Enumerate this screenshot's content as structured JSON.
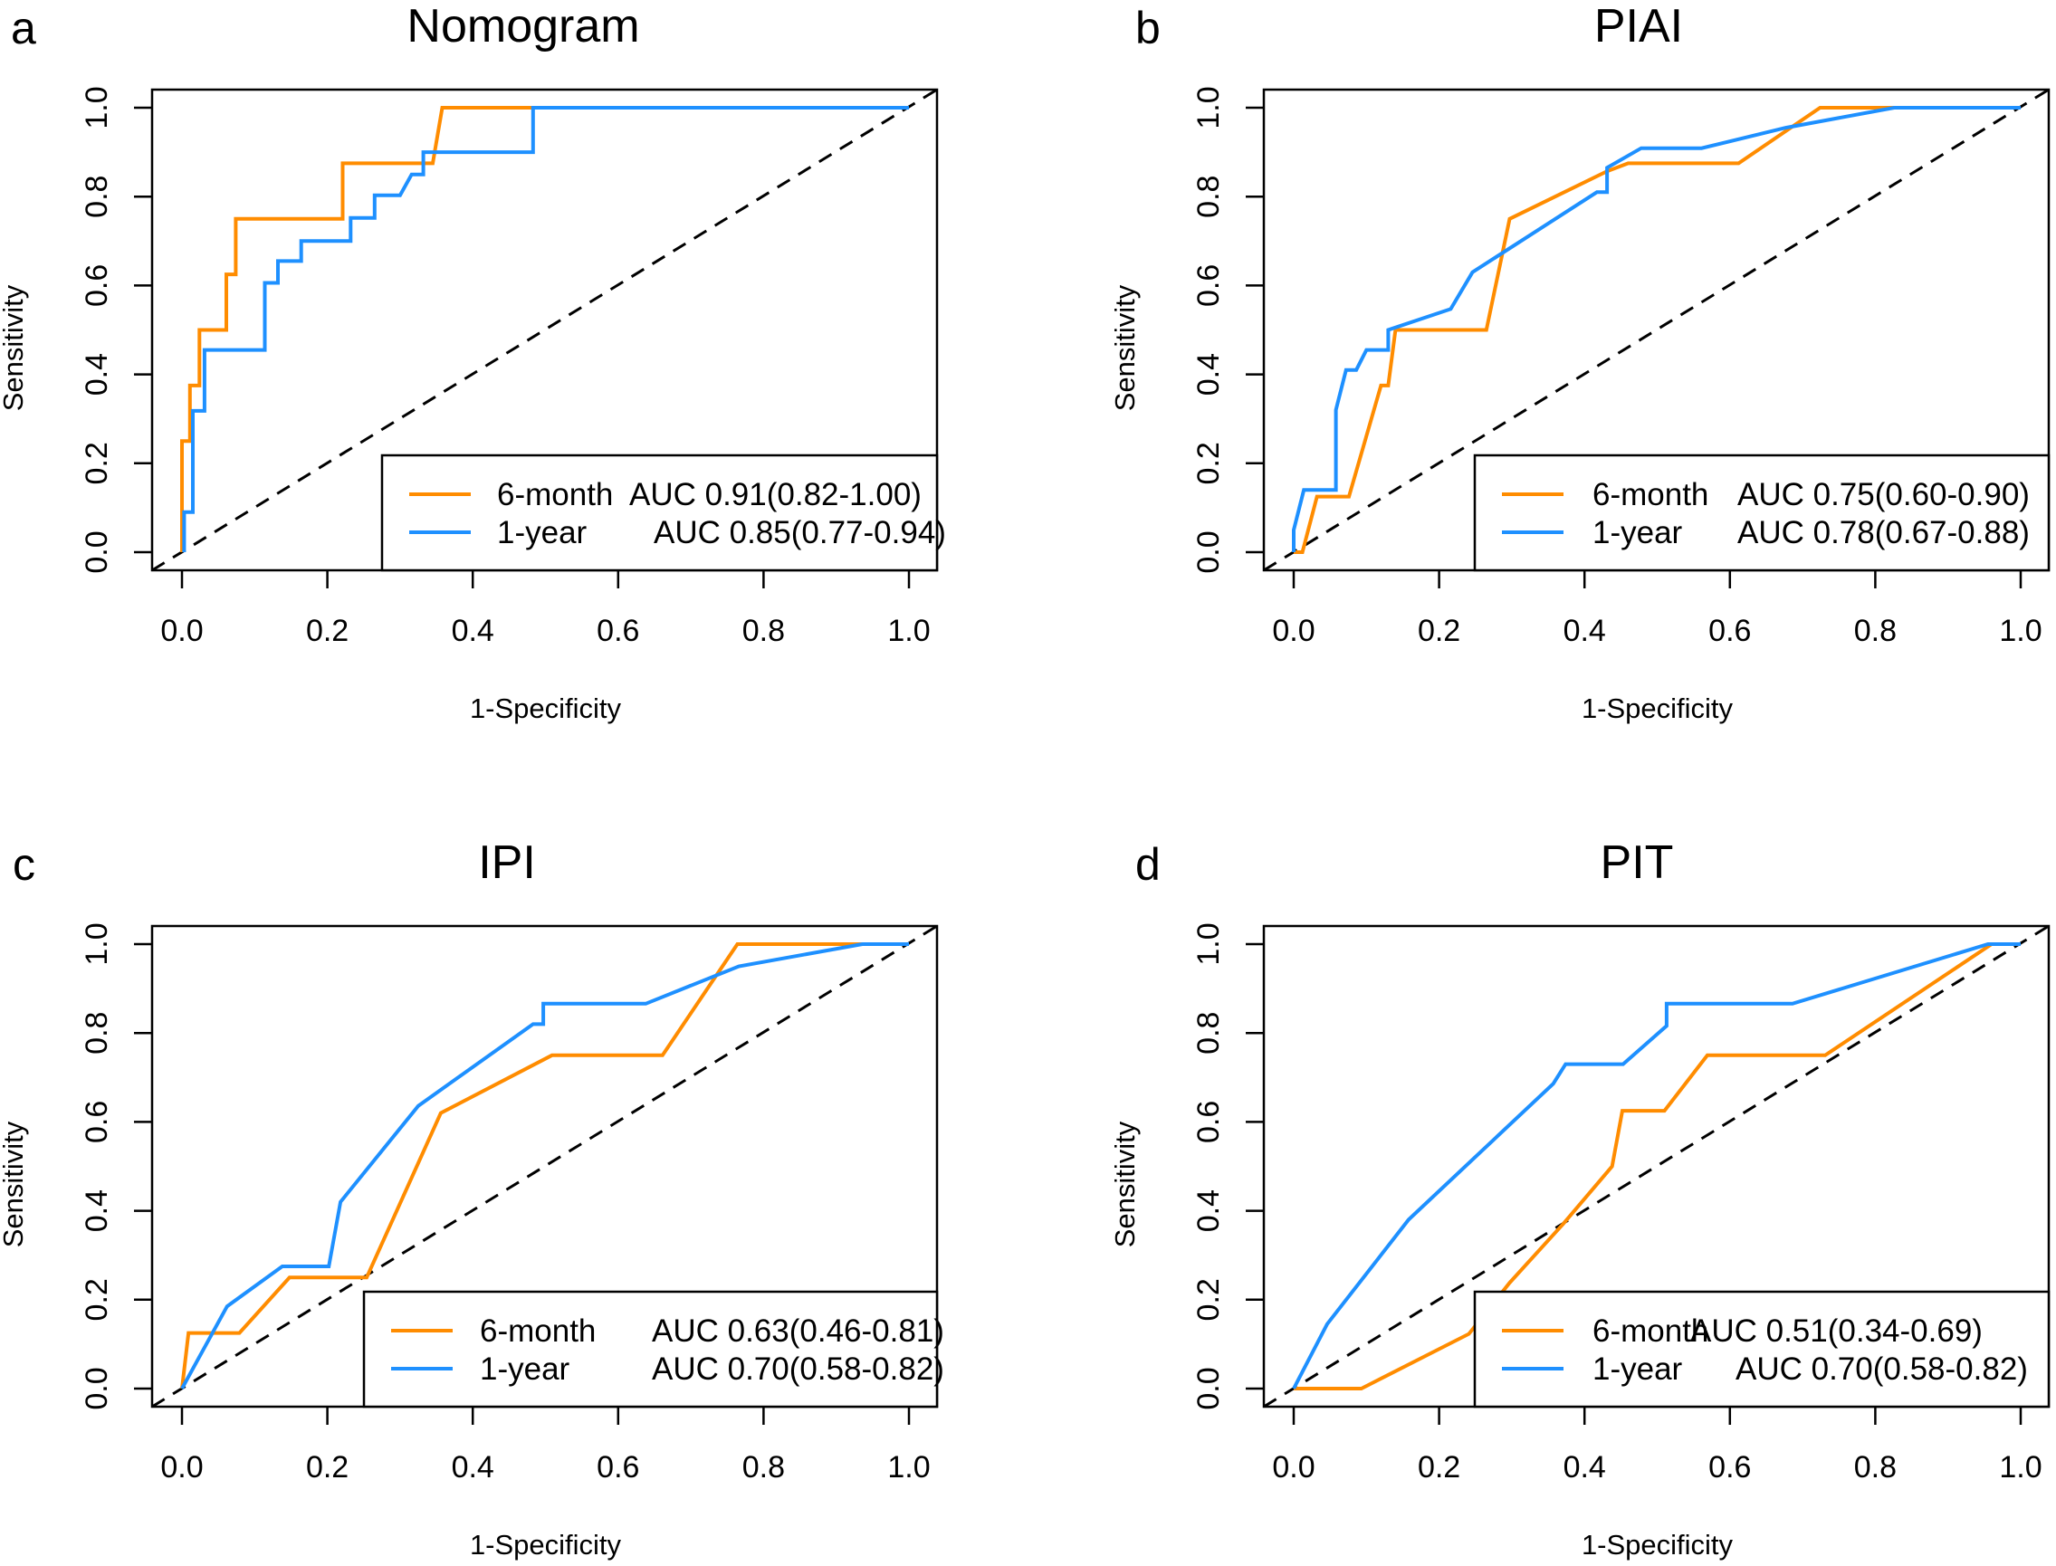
{
  "chart_data": [
    {
      "type": "line",
      "panel_label": "a",
      "title": "Nomogram",
      "xlabel": "1-Specificity",
      "ylabel": "Sensitivity",
      "xlim": [
        0,
        1
      ],
      "ylim": [
        0,
        1
      ],
      "xticks": [
        "0.0",
        "0.2",
        "0.4",
        "0.6",
        "0.8",
        "1.0"
      ],
      "yticks": [
        "0.0",
        "0.2",
        "0.4",
        "0.6",
        "0.8",
        "1.0"
      ],
      "reference_line": "diagonal dashed",
      "legend_position": "bottom-right",
      "series": [
        {
          "name": "6-month",
          "legend_label": "6-month",
          "legend_value": "AUC 0.91(0.82-1.00)",
          "color": "#FF8C00",
          "x": [
            0,
            0,
            0.011,
            0.011,
            0.024,
            0.024,
            0.061,
            0.061,
            0.074,
            0.074,
            0.221,
            0.221,
            0.345,
            0.358,
            1.0
          ],
          "y": [
            0,
            0.25,
            0.25,
            0.375,
            0.375,
            0.5,
            0.5,
            0.625,
            0.625,
            0.75,
            0.75,
            0.875,
            0.875,
            1.0,
            1.0
          ]
        },
        {
          "name": "1-year",
          "legend_label": "1-year",
          "legend_value": "AUC 0.85(0.77-0.94)",
          "color": "#1E90FF",
          "x": [
            0.003,
            0.003,
            0.015,
            0.015,
            0.031,
            0.031,
            0.114,
            0.114,
            0.132,
            0.132,
            0.164,
            0.164,
            0.232,
            0.232,
            0.265,
            0.265,
            0.3,
            0.316,
            0.332,
            0.332,
            0.483,
            0.483,
            1.0
          ],
          "y": [
            0,
            0.09,
            0.09,
            0.318,
            0.318,
            0.455,
            0.455,
            0.606,
            0.606,
            0.655,
            0.655,
            0.7,
            0.7,
            0.752,
            0.752,
            0.803,
            0.803,
            0.85,
            0.85,
            0.9,
            0.9,
            1.0,
            1.0
          ]
        }
      ]
    },
    {
      "type": "line",
      "panel_label": "b",
      "title": "PIAI",
      "xlabel": "1-Specificity",
      "ylabel": "Sensitivity",
      "xlim": [
        0,
        1
      ],
      "ylim": [
        0,
        1
      ],
      "xticks": [
        "0.0",
        "0.2",
        "0.4",
        "0.6",
        "0.8",
        "1.0"
      ],
      "yticks": [
        "0.0",
        "0.2",
        "0.4",
        "0.6",
        "0.8",
        "1.0"
      ],
      "reference_line": "diagonal dashed",
      "legend_position": "bottom-right",
      "series": [
        {
          "name": "6-month",
          "legend_label": "6-month",
          "legend_value": "AUC 0.75(0.60-0.90)",
          "color": "#FF8C00",
          "x": [
            0,
            0.012,
            0.032,
            0.076,
            0.12,
            0.13,
            0.14,
            0.265,
            0.297,
            0.431,
            0.46,
            0.612,
            0.724,
            1.0
          ],
          "y": [
            0,
            0,
            0.125,
            0.125,
            0.375,
            0.375,
            0.5,
            0.5,
            0.75,
            0.857,
            0.875,
            0.875,
            1.0,
            1.0
          ]
        },
        {
          "name": "1-year",
          "legend_label": "1-year",
          "legend_value": "AUC 0.78(0.67-0.88)",
          "color": "#1E90FF",
          "x": [
            0,
            0,
            0.014,
            0.058,
            0.058,
            0.072,
            0.086,
            0.1,
            0.13,
            0.13,
            0.216,
            0.246,
            0.417,
            0.431,
            0.431,
            0.478,
            0.561,
            0.677,
            0.826,
            1.0
          ],
          "y": [
            0,
            0.05,
            0.14,
            0.14,
            0.32,
            0.41,
            0.41,
            0.455,
            0.455,
            0.5,
            0.547,
            0.63,
            0.81,
            0.81,
            0.865,
            0.909,
            0.909,
            0.955,
            1.0,
            1.0
          ]
        }
      ]
    },
    {
      "type": "line",
      "panel_label": "c",
      "title": "IPI",
      "xlabel": "1-Specificity",
      "ylabel": "Sensitivity",
      "xlim": [
        0,
        1
      ],
      "ylim": [
        0,
        1
      ],
      "xticks": [
        "0.0",
        "0.2",
        "0.4",
        "0.6",
        "0.8",
        "1.0"
      ],
      "yticks": [
        "0.0",
        "0.2",
        "0.4",
        "0.6",
        "0.8",
        "1.0"
      ],
      "reference_line": "diagonal dashed",
      "legend_position": "bottom-right",
      "series": [
        {
          "name": "6-month",
          "legend_label": "6-month",
          "legend_value": "AUC 0.63(0.46-0.81)",
          "color": "#FF8C00",
          "x": [
            0,
            0.009,
            0.079,
            0.148,
            0.254,
            0.356,
            0.509,
            0.661,
            0.764,
            1.0
          ],
          "y": [
            0,
            0.125,
            0.125,
            0.25,
            0.25,
            0.62,
            0.75,
            0.75,
            1.0,
            1.0
          ]
        },
        {
          "name": "1-year",
          "legend_label": "1-year",
          "legend_value": "AUC 0.70(0.58-0.82)",
          "color": "#1E90FF",
          "x": [
            0,
            0.062,
            0.138,
            0.202,
            0.218,
            0.325,
            0.483,
            0.497,
            0.497,
            0.638,
            0.766,
            0.936,
            1.0
          ],
          "y": [
            0,
            0.185,
            0.275,
            0.275,
            0.42,
            0.636,
            0.82,
            0.82,
            0.866,
            0.866,
            0.95,
            1.0,
            1.0
          ]
        }
      ]
    },
    {
      "type": "line",
      "panel_label": "d",
      "title": "PIT",
      "xlabel": "1-Specificity",
      "ylabel": "Sensitivity",
      "xlim": [
        0,
        1
      ],
      "ylim": [
        0,
        1
      ],
      "xticks": [
        "0.0",
        "0.2",
        "0.4",
        "0.6",
        "0.8",
        "1.0"
      ],
      "yticks": [
        "0.0",
        "0.2",
        "0.4",
        "0.6",
        "0.8",
        "1.0"
      ],
      "reference_line": "diagonal dashed",
      "legend_position": "bottom-right",
      "series": [
        {
          "name": "6-month",
          "legend_label": "6-month",
          "legend_value": "AUC 0.51(0.34-0.69)",
          "color": "#FF8C00",
          "x": [
            0,
            0.093,
            0.241,
            0.297,
            0.371,
            0.438,
            0.452,
            0.51,
            0.569,
            0.731,
            0.96,
            1.0
          ],
          "y": [
            0,
            0,
            0.123,
            0.238,
            0.371,
            0.5,
            0.625,
            0.625,
            0.75,
            0.75,
            1.0,
            1.0
          ]
        },
        {
          "name": "1-year",
          "legend_label": "1-year",
          "legend_value": "AUC 0.70(0.58-0.82)",
          "color": "#1E90FF",
          "x": [
            0,
            0.046,
            0.158,
            0.357,
            0.374,
            0.453,
            0.513,
            0.513,
            0.686,
            0.955,
            1.0
          ],
          "y": [
            0,
            0.145,
            0.38,
            0.686,
            0.73,
            0.73,
            0.816,
            0.866,
            0.866,
            1.0,
            1.0
          ]
        }
      ]
    }
  ]
}
